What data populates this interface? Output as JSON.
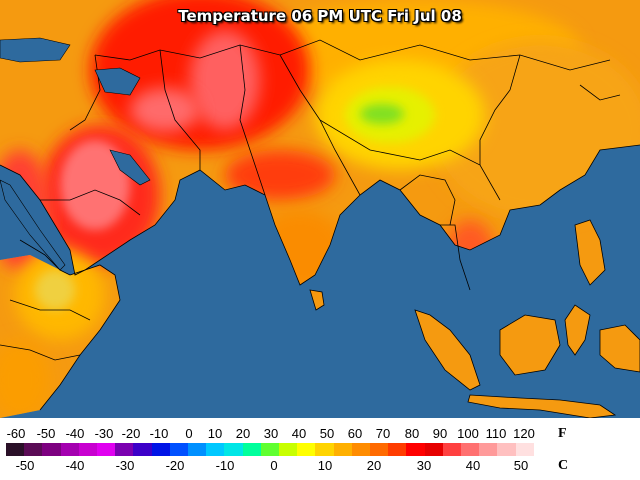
{
  "title": "Temperature 06 PM UTC Fri Jul 08",
  "map": {
    "ocean_color": "#2e6a9e",
    "land_base_color": "#f59a10",
    "border_color": "#000000"
  },
  "legend": {
    "fahrenheit_unit": "F",
    "celsius_unit": "C",
    "fahrenheit_ticks": [
      "-60",
      "-50",
      "-40",
      "-30",
      "-20",
      "-10",
      "0",
      "10",
      "20",
      "30",
      "40",
      "50",
      "60",
      "70",
      "80",
      "90",
      "100",
      "110",
      "120"
    ],
    "celsius_ticks": [
      "-50",
      "-40",
      "-30",
      "-20",
      "-10",
      "0",
      "10",
      "20",
      "30",
      "40",
      "50"
    ],
    "colors": [
      "#2a1028",
      "#5a0b55",
      "#7d0080",
      "#a400b0",
      "#c800d0",
      "#e000f0",
      "#7a00b0",
      "#3c00c8",
      "#0014e6",
      "#0050ff",
      "#0090ff",
      "#00c8ff",
      "#00e6e6",
      "#00ff9c",
      "#60ff30",
      "#c8ff00",
      "#ffff00",
      "#ffd400",
      "#ffb000",
      "#ff8c00",
      "#ff6a00",
      "#ff3c00",
      "#ff0000",
      "#e60000",
      "#ff4040",
      "#ff7070",
      "#ff9a9a",
      "#ffc0c0",
      "#ffe0e0",
      "#ffffff"
    ]
  }
}
